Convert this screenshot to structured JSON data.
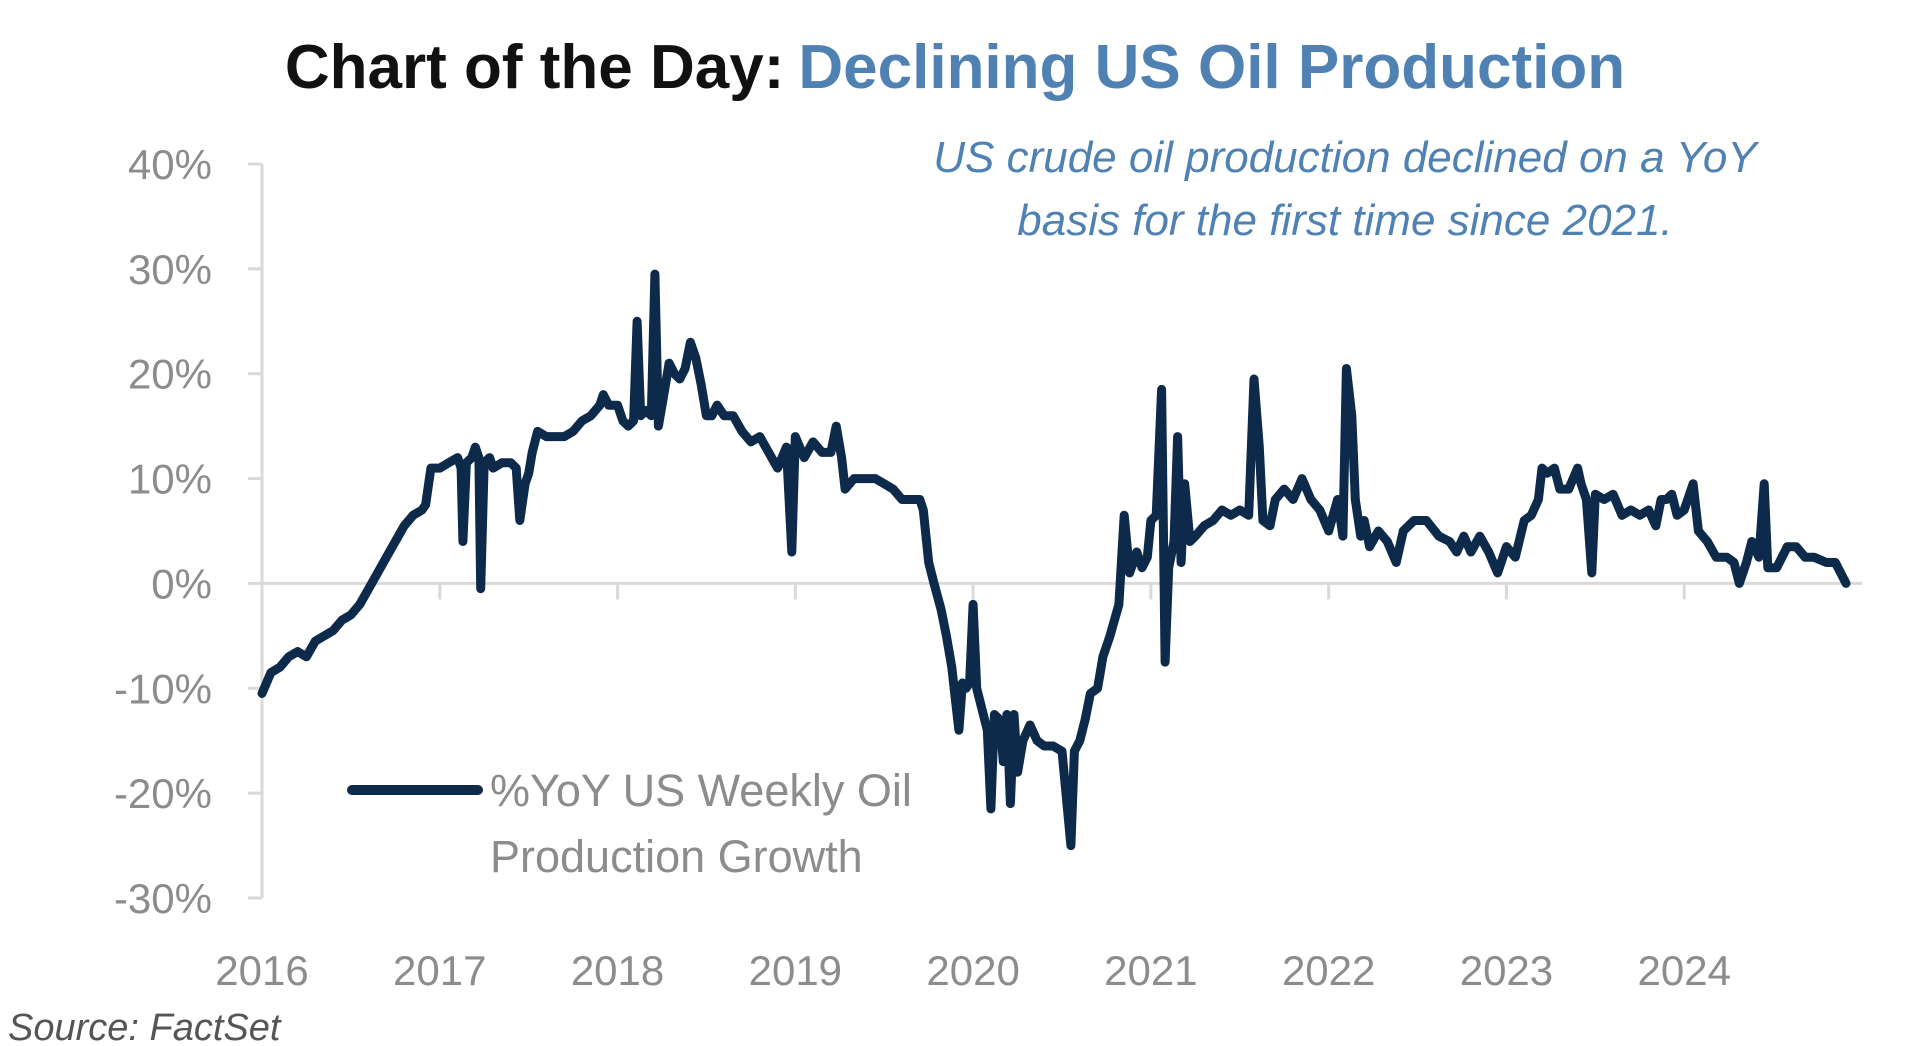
{
  "title": {
    "prefix": "Chart of the Day:",
    "accent": "Declining US Oil Production"
  },
  "annotation": {
    "line1": "US crude oil production declined on a YoY",
    "line2": "basis for the first time since 2021."
  },
  "source": "Source: FactSet",
  "colors": {
    "line": "#0d2a4a",
    "accent": "#4f81b3",
    "axis": "#d9d9d9",
    "tick_text": "#8c8c8c"
  },
  "chart_data": {
    "type": "line",
    "title": "Chart of the Day: Declining US Oil Production",
    "xlabel": "",
    "ylabel": "",
    "ylim": [
      -30,
      40
    ],
    "xlim": [
      2016,
      2025
    ],
    "y_ticks": [
      40,
      30,
      20,
      10,
      0,
      -10,
      -20,
      -30
    ],
    "y_tick_labels": [
      "40%",
      "30%",
      "20%",
      "10%",
      "0%",
      "-10%",
      "-20%",
      "-30%"
    ],
    "x_ticks": [
      2016,
      2017,
      2018,
      2019,
      2020,
      2021,
      2022,
      2023,
      2024
    ],
    "x_tick_labels": [
      "2016",
      "2017",
      "2018",
      "2019",
      "2020",
      "2021",
      "2022",
      "2023",
      "2024"
    ],
    "grid": false,
    "legend_position": "bottom-left",
    "series": [
      {
        "name": "%YoY US Weekly Oil Production Growth",
        "legend_lines": [
          "%YoY US Weekly Oil",
          "Production Growth"
        ],
        "points": [
          [
            2016.0,
            -10.5
          ],
          [
            2016.05,
            -8.5
          ],
          [
            2016.1,
            -8.0
          ],
          [
            2016.15,
            -7.0
          ],
          [
            2016.2,
            -6.5
          ],
          [
            2016.25,
            -7.0
          ],
          [
            2016.3,
            -5.5
          ],
          [
            2016.35,
            -5.0
          ],
          [
            2016.4,
            -4.5
          ],
          [
            2016.45,
            -3.5
          ],
          [
            2016.5,
            -3.0
          ],
          [
            2016.55,
            -2.0
          ],
          [
            2016.6,
            -0.5
          ],
          [
            2016.65,
            1.0
          ],
          [
            2016.7,
            2.5
          ],
          [
            2016.75,
            4.0
          ],
          [
            2016.8,
            5.5
          ],
          [
            2016.85,
            6.5
          ],
          [
            2016.9,
            7.0
          ],
          [
            2016.92,
            7.5
          ],
          [
            2016.95,
            11.0
          ],
          [
            2017.0,
            11.0
          ],
          [
            2017.05,
            11.5
          ],
          [
            2017.1,
            12.0
          ],
          [
            2017.12,
            11.0
          ],
          [
            2017.13,
            4.0
          ],
          [
            2017.15,
            11.5
          ],
          [
            2017.18,
            12.0
          ],
          [
            2017.2,
            13.0
          ],
          [
            2017.22,
            12.0
          ],
          [
            2017.23,
            -0.5
          ],
          [
            2017.25,
            11.5
          ],
          [
            2017.28,
            12.0
          ],
          [
            2017.3,
            11.0
          ],
          [
            2017.35,
            11.5
          ],
          [
            2017.4,
            11.5
          ],
          [
            2017.43,
            11.0
          ],
          [
            2017.45,
            6.0
          ],
          [
            2017.48,
            9.5
          ],
          [
            2017.5,
            10.5
          ],
          [
            2017.52,
            12.5
          ],
          [
            2017.55,
            14.5
          ],
          [
            2017.6,
            14.0
          ],
          [
            2017.65,
            14.0
          ],
          [
            2017.7,
            14.0
          ],
          [
            2017.75,
            14.5
          ],
          [
            2017.8,
            15.5
          ],
          [
            2017.85,
            16.0
          ],
          [
            2017.9,
            17.0
          ],
          [
            2017.92,
            18.0
          ],
          [
            2017.95,
            17.0
          ],
          [
            2018.0,
            17.0
          ],
          [
            2018.03,
            15.5
          ],
          [
            2018.06,
            15.0
          ],
          [
            2018.09,
            15.5
          ],
          [
            2018.11,
            25.0
          ],
          [
            2018.13,
            16.0
          ],
          [
            2018.16,
            16.5
          ],
          [
            2018.19,
            16.0
          ],
          [
            2018.21,
            29.5
          ],
          [
            2018.23,
            15.0
          ],
          [
            2018.26,
            18.0
          ],
          [
            2018.29,
            21.0
          ],
          [
            2018.32,
            20.0
          ],
          [
            2018.35,
            19.5
          ],
          [
            2018.38,
            20.5
          ],
          [
            2018.41,
            23.0
          ],
          [
            2018.44,
            21.5
          ],
          [
            2018.47,
            19.0
          ],
          [
            2018.5,
            16.0
          ],
          [
            2018.53,
            16.0
          ],
          [
            2018.56,
            17.0
          ],
          [
            2018.6,
            16.0
          ],
          [
            2018.65,
            16.0
          ],
          [
            2018.7,
            14.5
          ],
          [
            2018.75,
            13.5
          ],
          [
            2018.8,
            14.0
          ],
          [
            2018.85,
            12.5
          ],
          [
            2018.9,
            11.0
          ],
          [
            2018.95,
            13.0
          ],
          [
            2018.98,
            3.0
          ],
          [
            2019.0,
            14.0
          ],
          [
            2019.05,
            12.0
          ],
          [
            2019.1,
            13.5
          ],
          [
            2019.15,
            12.5
          ],
          [
            2019.2,
            12.5
          ],
          [
            2019.23,
            15.0
          ],
          [
            2019.26,
            12.0
          ],
          [
            2019.28,
            9.0
          ],
          [
            2019.33,
            10.0
          ],
          [
            2019.4,
            10.0
          ],
          [
            2019.45,
            10.0
          ],
          [
            2019.5,
            9.5
          ],
          [
            2019.55,
            9.0
          ],
          [
            2019.6,
            8.0
          ],
          [
            2019.65,
            8.0
          ],
          [
            2019.7,
            8.0
          ],
          [
            2019.72,
            7.0
          ],
          [
            2019.75,
            2.0
          ],
          [
            2019.78,
            0.0
          ],
          [
            2019.82,
            -2.5
          ],
          [
            2019.85,
            -5.0
          ],
          [
            2019.88,
            -8.0
          ],
          [
            2019.9,
            -11.0
          ],
          [
            2019.92,
            -14.0
          ],
          [
            2019.94,
            -9.5
          ],
          [
            2019.96,
            -10.0
          ],
          [
            2019.98,
            -9.5
          ],
          [
            2020.0,
            -2.0
          ],
          [
            2020.02,
            -10.0
          ],
          [
            2020.05,
            -12.0
          ],
          [
            2020.08,
            -14.0
          ],
          [
            2020.1,
            -21.5
          ],
          [
            2020.12,
            -12.5
          ],
          [
            2020.15,
            -13.0
          ],
          [
            2020.17,
            -17.0
          ],
          [
            2020.19,
            -12.5
          ],
          [
            2020.21,
            -21.0
          ],
          [
            2020.23,
            -12.5
          ],
          [
            2020.25,
            -18.0
          ],
          [
            2020.28,
            -15.0
          ],
          [
            2020.32,
            -13.5
          ],
          [
            2020.36,
            -15.0
          ],
          [
            2020.4,
            -15.5
          ],
          [
            2020.45,
            -15.5
          ],
          [
            2020.5,
            -16.0
          ],
          [
            2020.55,
            -25.0
          ],
          [
            2020.57,
            -16.0
          ],
          [
            2020.6,
            -15.0
          ],
          [
            2020.63,
            -13.0
          ],
          [
            2020.66,
            -10.5
          ],
          [
            2020.7,
            -10.0
          ],
          [
            2020.73,
            -7.0
          ],
          [
            2020.77,
            -5.0
          ],
          [
            2020.82,
            -2.0
          ],
          [
            2020.85,
            6.5
          ],
          [
            2020.88,
            1.0
          ],
          [
            2020.92,
            3.0
          ],
          [
            2020.95,
            1.5
          ],
          [
            2020.98,
            2.5
          ],
          [
            2021.0,
            6.0
          ],
          [
            2021.03,
            6.5
          ],
          [
            2021.06,
            18.5
          ],
          [
            2021.08,
            -7.5
          ],
          [
            2021.1,
            1.5
          ],
          [
            2021.13,
            4.0
          ],
          [
            2021.15,
            14.0
          ],
          [
            2021.17,
            2.0
          ],
          [
            2021.19,
            9.5
          ],
          [
            2021.22,
            4.0
          ],
          [
            2021.25,
            4.5
          ],
          [
            2021.3,
            5.5
          ],
          [
            2021.35,
            6.0
          ],
          [
            2021.4,
            7.0
          ],
          [
            2021.45,
            6.5
          ],
          [
            2021.5,
            7.0
          ],
          [
            2021.55,
            6.5
          ],
          [
            2021.58,
            19.5
          ],
          [
            2021.61,
            13.0
          ],
          [
            2021.63,
            6.0
          ],
          [
            2021.67,
            5.5
          ],
          [
            2021.7,
            8.0
          ],
          [
            2021.75,
            9.0
          ],
          [
            2021.8,
            8.0
          ],
          [
            2021.85,
            10.0
          ],
          [
            2021.9,
            8.0
          ],
          [
            2021.95,
            7.0
          ],
          [
            2022.0,
            5.0
          ],
          [
            2022.05,
            8.0
          ],
          [
            2022.08,
            4.5
          ],
          [
            2022.1,
            20.5
          ],
          [
            2022.13,
            16.0
          ],
          [
            2022.15,
            8.0
          ],
          [
            2022.18,
            4.5
          ],
          [
            2022.2,
            6.0
          ],
          [
            2022.23,
            3.5
          ],
          [
            2022.28,
            5.0
          ],
          [
            2022.33,
            4.0
          ],
          [
            2022.38,
            2.0
          ],
          [
            2022.42,
            5.0
          ],
          [
            2022.48,
            6.0
          ],
          [
            2022.55,
            6.0
          ],
          [
            2022.62,
            4.5
          ],
          [
            2022.68,
            4.0
          ],
          [
            2022.72,
            3.0
          ],
          [
            2022.76,
            4.5
          ],
          [
            2022.8,
            3.0
          ],
          [
            2022.85,
            4.5
          ],
          [
            2022.9,
            3.0
          ],
          [
            2022.95,
            1.0
          ],
          [
            2023.0,
            3.5
          ],
          [
            2023.05,
            2.5
          ],
          [
            2023.1,
            6.0
          ],
          [
            2023.14,
            6.5
          ],
          [
            2023.18,
            8.0
          ],
          [
            2023.2,
            11.0
          ],
          [
            2023.23,
            10.5
          ],
          [
            2023.27,
            11.0
          ],
          [
            2023.3,
            9.0
          ],
          [
            2023.35,
            9.0
          ],
          [
            2023.4,
            11.0
          ],
          [
            2023.42,
            9.5
          ],
          [
            2023.45,
            8.0
          ],
          [
            2023.48,
            1.0
          ],
          [
            2023.5,
            8.5
          ],
          [
            2023.55,
            8.0
          ],
          [
            2023.6,
            8.5
          ],
          [
            2023.65,
            6.5
          ],
          [
            2023.7,
            7.0
          ],
          [
            2023.75,
            6.5
          ],
          [
            2023.8,
            7.0
          ],
          [
            2023.84,
            5.5
          ],
          [
            2023.87,
            8.0
          ],
          [
            2023.9,
            8.0
          ],
          [
            2023.93,
            8.5
          ],
          [
            2023.96,
            6.5
          ],
          [
            2024.0,
            7.0
          ],
          [
            2024.05,
            9.5
          ],
          [
            2024.08,
            5.0
          ],
          [
            2024.13,
            4.0
          ],
          [
            2024.18,
            2.5
          ],
          [
            2024.24,
            2.5
          ],
          [
            2024.28,
            2.0
          ],
          [
            2024.31,
            0.0
          ],
          [
            2024.35,
            2.0
          ],
          [
            2024.38,
            4.0
          ],
          [
            2024.42,
            2.5
          ],
          [
            2024.45,
            9.5
          ],
          [
            2024.47,
            1.5
          ],
          [
            2024.52,
            1.5
          ],
          [
            2024.58,
            3.5
          ],
          [
            2024.63,
            3.5
          ],
          [
            2024.68,
            2.5
          ],
          [
            2024.73,
            2.5
          ],
          [
            2024.8,
            2.0
          ],
          [
            2024.85,
            2.0
          ],
          [
            2024.88,
            1.0
          ],
          [
            2024.91,
            0.0
          ]
        ]
      }
    ]
  }
}
